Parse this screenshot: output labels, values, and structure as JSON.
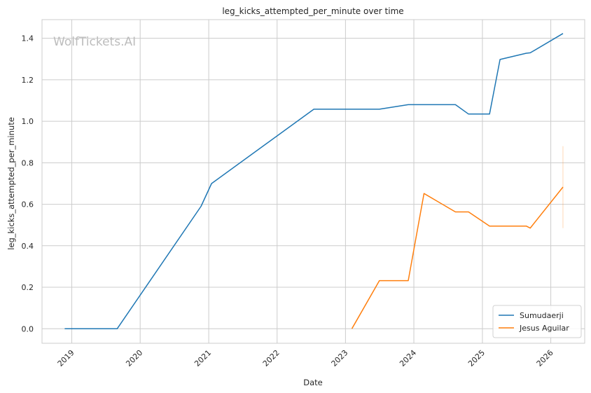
{
  "watermark": "WolfTickets.AI",
  "chart_data": {
    "type": "line",
    "title": "leg_kicks_attempted_per_minute over time",
    "xlabel": "Date",
    "ylabel": "leg_kicks_attempted_per_minute",
    "xlim": [
      "2018-07-26",
      "2026-07-01"
    ],
    "ylim": [
      -0.07,
      1.49
    ],
    "x_ticks": [
      "2019-01-01",
      "2020-01-01",
      "2021-01-01",
      "2022-01-01",
      "2023-01-01",
      "2024-01-01",
      "2025-01-01",
      "2026-01-01"
    ],
    "x_tick_labels": [
      "2019",
      "2020",
      "2021",
      "2022",
      "2023",
      "2024",
      "2025",
      "2026"
    ],
    "y_ticks": [
      0.0,
      0.2,
      0.4,
      0.6,
      0.8,
      1.0,
      1.2,
      1.4
    ],
    "y_tick_labels": [
      "0.0",
      "0.2",
      "0.4",
      "0.6",
      "0.8",
      "1.0",
      "1.2",
      "1.4"
    ],
    "grid": true,
    "legend_position": "bottom-right",
    "series": [
      {
        "name": "Sumudaerji",
        "color": "#1f77b4",
        "points": [
          [
            "2018-11-24",
            0.0
          ],
          [
            "2019-08-31",
            0.0
          ],
          [
            "2020-11-21",
            0.59
          ],
          [
            "2021-01-16",
            0.7
          ],
          [
            "2022-07-16",
            1.058
          ],
          [
            "2023-07-01",
            1.058
          ],
          [
            "2023-12-02",
            1.08
          ],
          [
            "2024-08-10",
            1.08
          ],
          [
            "2024-10-19",
            1.035
          ],
          [
            "2025-02-08",
            1.035
          ],
          [
            "2025-04-05",
            1.298
          ],
          [
            "2025-08-23",
            1.328
          ],
          [
            "2025-09-13",
            1.33
          ],
          [
            "2026-03-07",
            1.423
          ]
        ]
      },
      {
        "name": "Jesus Aguilar",
        "color": "#ff7f0e",
        "points": [
          [
            "2023-02-04",
            0.0
          ],
          [
            "2023-07-01",
            0.232
          ],
          [
            "2023-12-02",
            0.232
          ],
          [
            "2024-02-24",
            0.652
          ],
          [
            "2024-08-10",
            0.563
          ],
          [
            "2024-10-19",
            0.563
          ],
          [
            "2025-02-08",
            0.495
          ],
          [
            "2025-08-23",
            0.495
          ],
          [
            "2025-09-13",
            0.485
          ],
          [
            "2026-03-07",
            0.683
          ]
        ],
        "error_bar": {
          "x": "2026-03-07",
          "low": 0.485,
          "high": 0.88
        }
      }
    ]
  }
}
